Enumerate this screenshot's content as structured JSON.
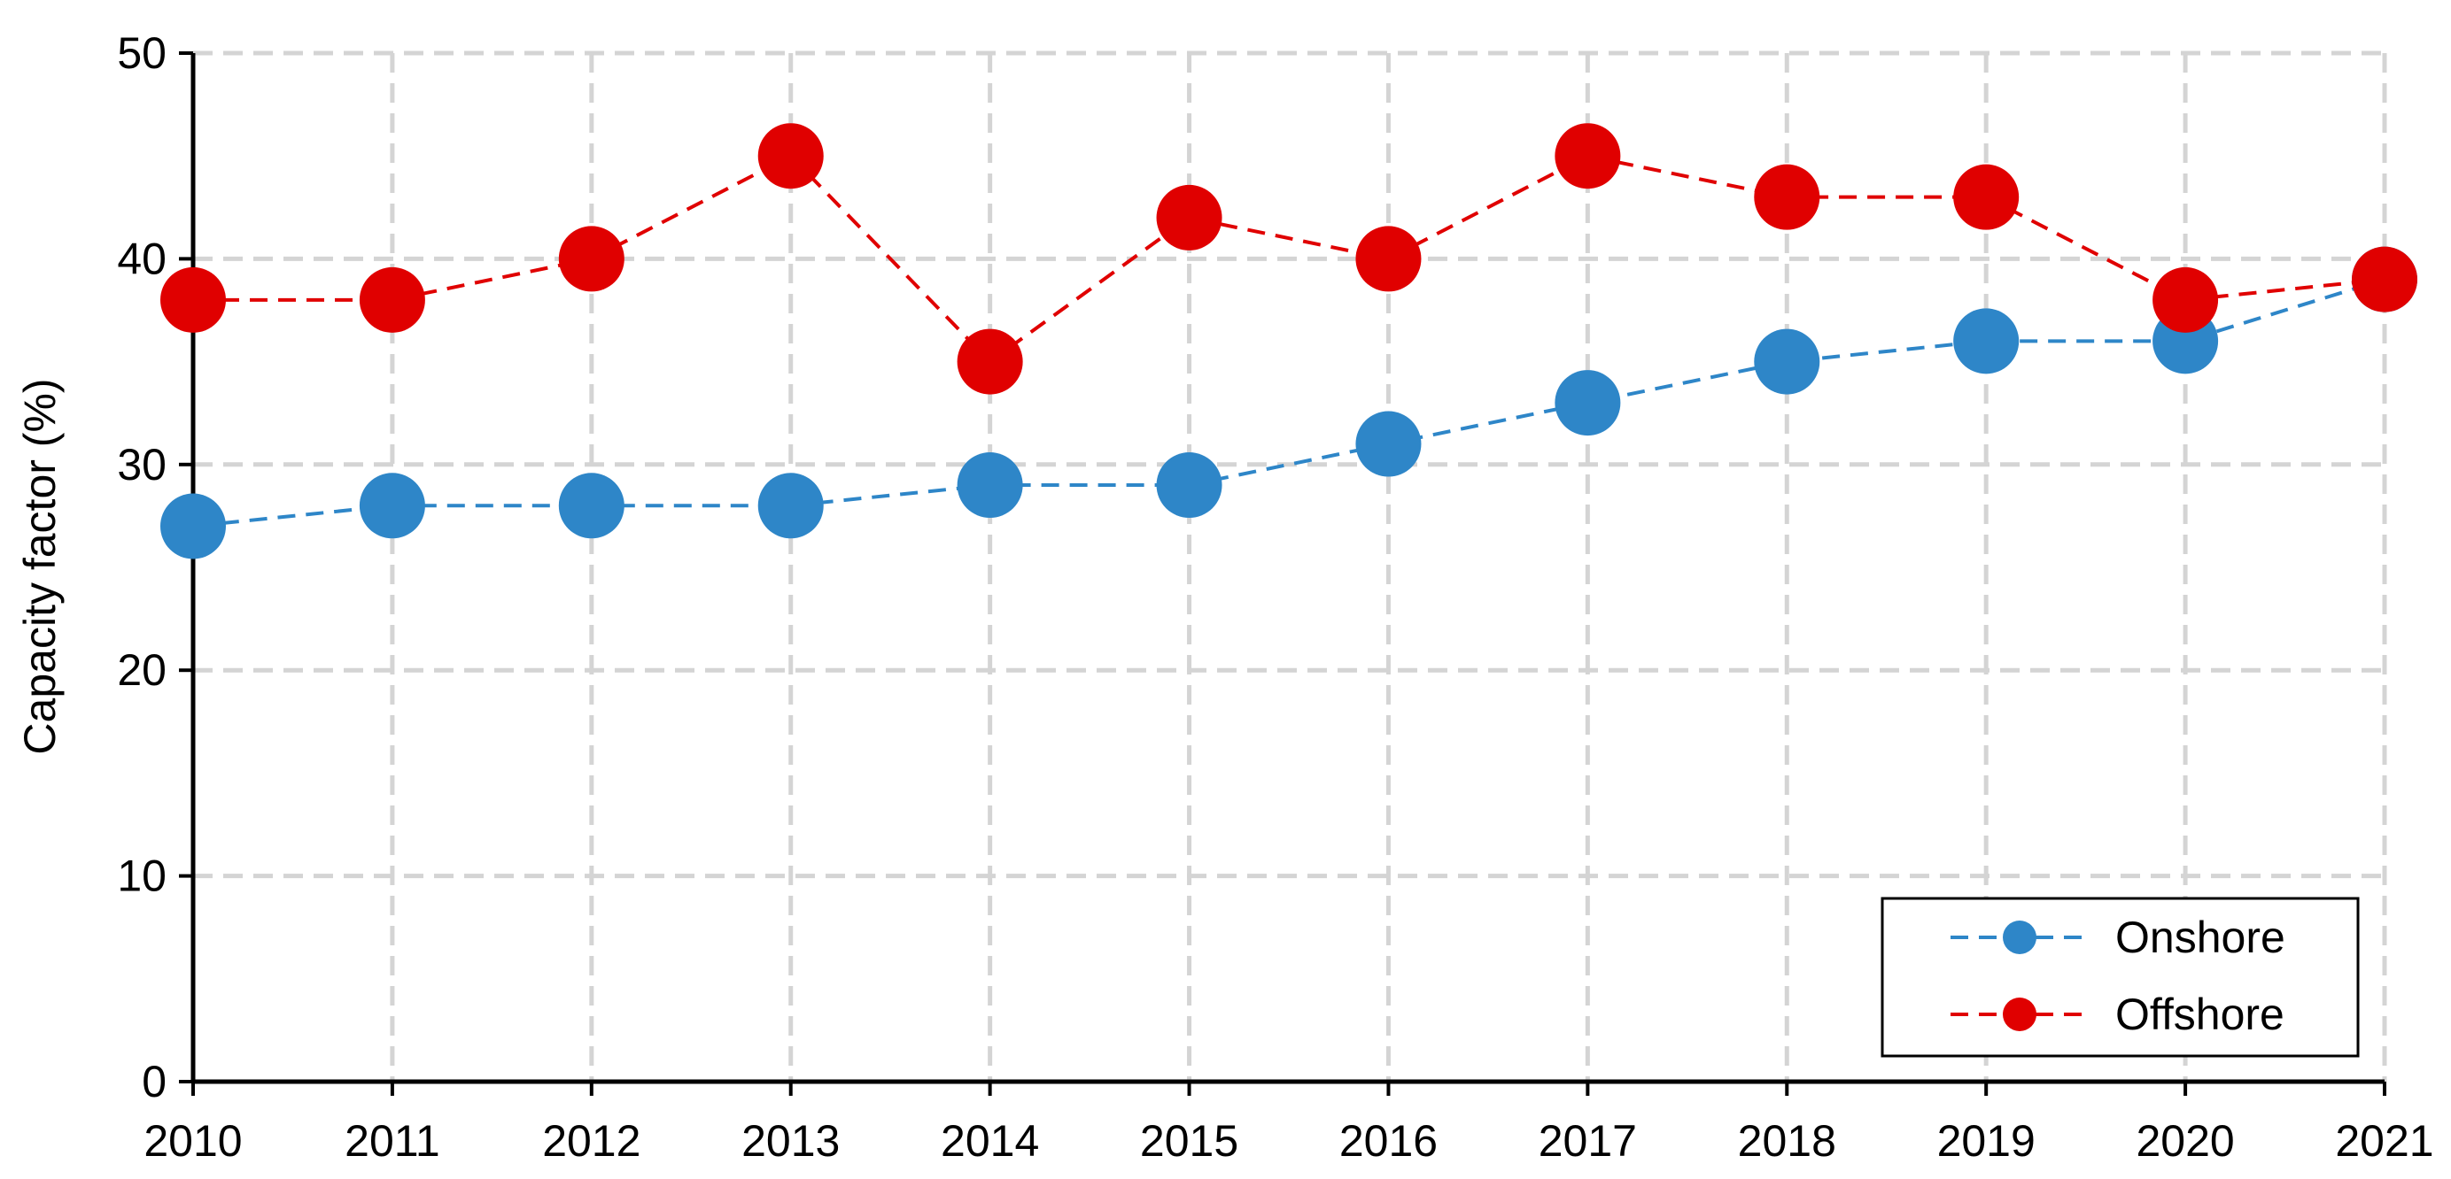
{
  "chart_data": {
    "type": "line",
    "x": [
      2010,
      2011,
      2012,
      2013,
      2014,
      2015,
      2016,
      2017,
      2018,
      2019,
      2020,
      2021
    ],
    "x_tick_labels": [
      "2010",
      "2011",
      "2012",
      "2013",
      "2014",
      "2015",
      "2016",
      "2017",
      "2018",
      "2019",
      "2020",
      "2021"
    ],
    "y_tick_labels": [
      "0",
      "10",
      "20",
      "30",
      "40",
      "50"
    ],
    "ylim": [
      0,
      50
    ],
    "xlabel": "",
    "ylabel": "Capacity factor (%)",
    "grid": true,
    "legend_position": "bottom-right",
    "series": [
      {
        "name": "Onshore",
        "color": "#2E86C8",
        "line_style": "dashed",
        "marker": "circle",
        "values": [
          27,
          28,
          28,
          28,
          29,
          29,
          31,
          33,
          35,
          36,
          36,
          39
        ]
      },
      {
        "name": "Offshore",
        "color": "#E00000",
        "line_style": "dashed",
        "marker": "circle",
        "values": [
          38,
          38,
          40,
          45,
          35,
          42,
          40,
          45,
          43,
          43,
          38,
          39
        ]
      }
    ]
  }
}
